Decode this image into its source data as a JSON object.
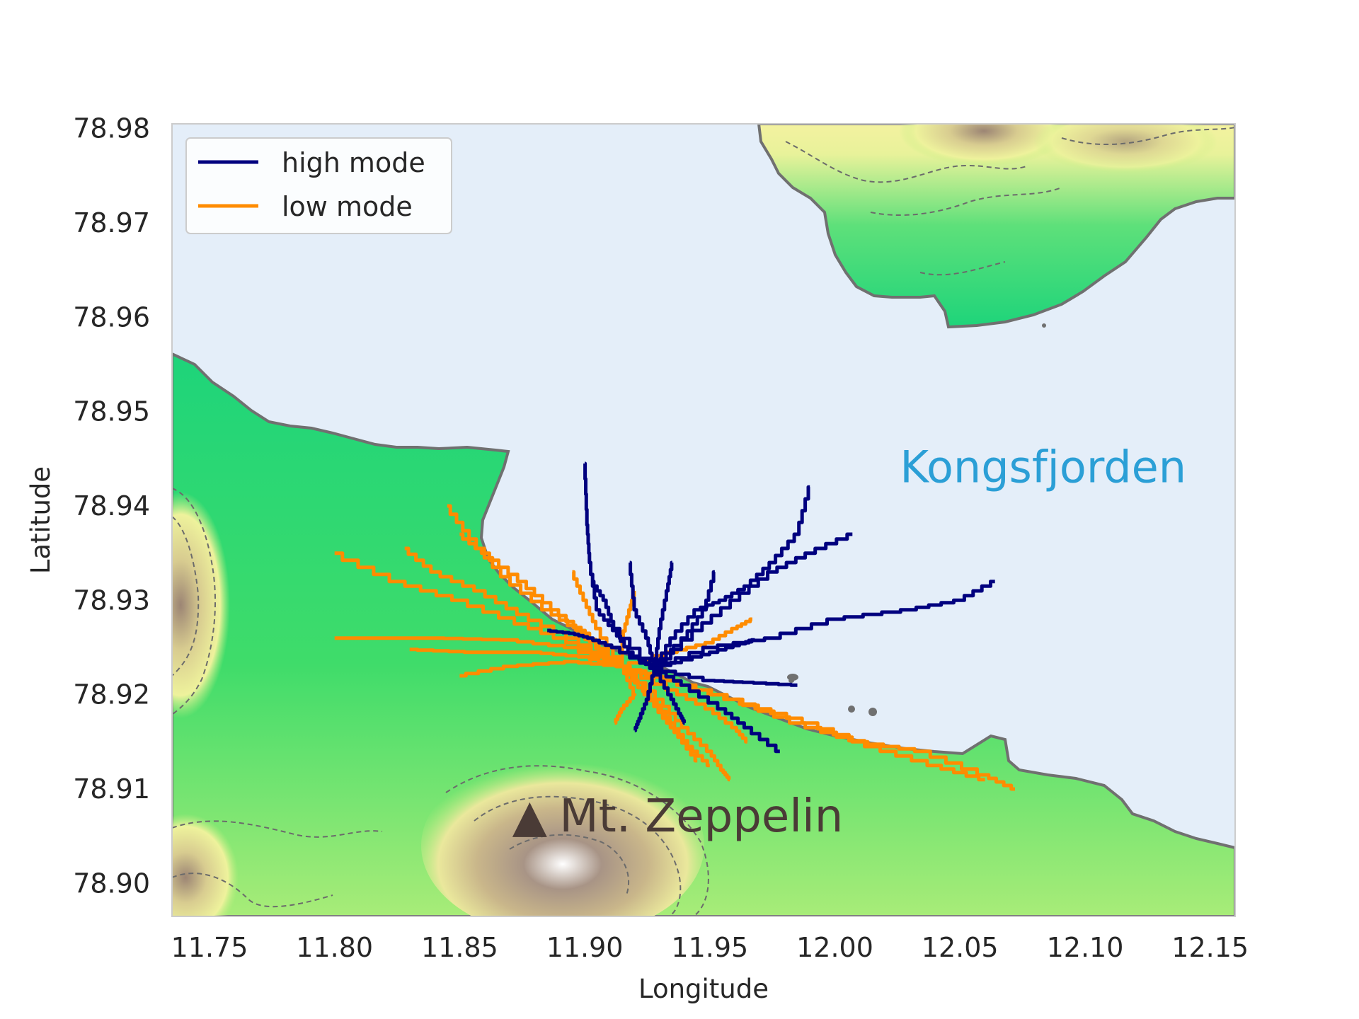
{
  "chart_data": {
    "type": "map-trajectories",
    "xlabel": "Longitude",
    "ylabel": "Latitude",
    "xlim": [
      11.735,
      12.16
    ],
    "ylim": [
      78.8965,
      78.9805
    ],
    "xticks": [
      "11.75",
      "11.80",
      "11.85",
      "11.90",
      "11.95",
      "12.00",
      "12.05",
      "12.10",
      "12.15"
    ],
    "yticks": [
      "78.90",
      "78.91",
      "78.92",
      "78.93",
      "78.94",
      "78.95",
      "78.96",
      "78.97",
      "78.98"
    ],
    "grid": false,
    "legend_position": "top-left",
    "colors": {
      "high_mode": "#00007f",
      "low_mode": "#ff8c00",
      "sea": "#e4eef9",
      "coast": "#707070",
      "land_low": "#1ed47a",
      "land_mid": "#f0f09a",
      "land_high": "#8c7766",
      "peak": "#ffffff"
    },
    "series": [
      {
        "name": "high mode",
        "color": "#00007f",
        "trajectories": [
          [
            [
              11.928,
              78.9228
            ],
            [
              11.918,
              78.9245
            ],
            [
              11.912,
              78.9268
            ],
            [
              11.905,
              78.929
            ],
            [
              11.902,
              78.934
            ],
            [
              11.901,
              78.938
            ],
            [
              11.9,
              78.9445
            ]
          ],
          [
            [
              11.928,
              78.9228
            ],
            [
              11.935,
              78.926
            ],
            [
              11.945,
              78.929
            ],
            [
              11.955,
              78.93
            ],
            [
              11.965,
              78.9315
            ],
            [
              11.975,
              78.934
            ],
            [
              11.985,
              78.937
            ],
            [
              11.99,
              78.942
            ]
          ],
          [
            [
              11.928,
              78.9228
            ],
            [
              11.945,
              78.9268
            ],
            [
              11.96,
              78.93
            ],
            [
              11.975,
              78.933
            ],
            [
              11.99,
              78.935
            ],
            [
              12.007,
              78.937
            ]
          ],
          [
            [
              11.928,
              78.9228
            ],
            [
              11.95,
              78.925
            ],
            [
              11.975,
              78.926
            ],
            [
              12.0,
              78.928
            ],
            [
              12.03,
              78.929
            ],
            [
              12.05,
              78.93
            ],
            [
              12.064,
              78.932
            ]
          ],
          [
            [
              11.928,
              78.9228
            ],
            [
              11.95,
              78.9215
            ],
            [
              11.965,
              78.9213
            ],
            [
              11.985,
              78.921
            ]
          ],
          [
            [
              11.928,
              78.9228
            ],
            [
              11.94,
              78.921
            ],
            [
              11.955,
              78.9185
            ],
            [
              11.965,
              78.9165
            ],
            [
              11.978,
              78.914
            ]
          ],
          [
            [
              11.928,
              78.9228
            ],
            [
              11.925,
              78.926
            ],
            [
              11.92,
              78.929
            ],
            [
              11.918,
              78.934
            ]
          ],
          [
            [
              11.928,
              78.9228
            ],
            [
              11.93,
              78.927
            ],
            [
              11.933,
              78.931
            ],
            [
              11.935,
              78.934
            ]
          ],
          [
            [
              11.928,
              78.9228
            ],
            [
              11.94,
              78.926
            ],
            [
              11.948,
              78.929
            ],
            [
              11.952,
              78.933
            ]
          ],
          [
            [
              11.928,
              78.9228
            ],
            [
              11.912,
              78.925
            ],
            [
              11.902,
              78.926
            ],
            [
              11.895,
              78.9265
            ],
            [
              11.885,
              78.9268
            ]
          ],
          [
            [
              11.928,
              78.9228
            ],
            [
              11.912,
              78.927
            ],
            [
              11.908,
              78.93
            ],
            [
              11.903,
              78.932
            ]
          ],
          [
            [
              11.928,
              78.9228
            ],
            [
              11.925,
              78.9195
            ],
            [
              11.922,
              78.9175
            ],
            [
              11.92,
              78.9162
            ]
          ],
          [
            [
              11.928,
              78.9228
            ],
            [
              11.934,
              78.92
            ],
            [
              11.938,
              78.918
            ],
            [
              11.94,
              78.917
            ]
          ],
          [
            [
              11.928,
              78.9228
            ],
            [
              11.945,
              78.924
            ],
            [
              11.958,
              78.925
            ],
            [
              11.968,
              78.9258
            ]
          ]
        ]
      },
      {
        "name": "low mode",
        "color": "#ff8c00",
        "trajectories": [
          [
            [
              11.915,
              78.923
            ],
            [
              11.895,
              78.925
            ],
            [
              11.87,
              78.9258
            ],
            [
              11.84,
              78.926
            ],
            [
              11.8,
              78.926
            ]
          ],
          [
            [
              11.915,
              78.923
            ],
            [
              11.895,
              78.9255
            ],
            [
              11.875,
              78.9275
            ],
            [
              11.85,
              78.93
            ],
            [
              11.825,
              78.932
            ],
            [
              11.8,
              78.935
            ]
          ],
          [
            [
              11.915,
              78.923
            ],
            [
              11.895,
              78.926
            ],
            [
              11.875,
              78.9285
            ],
            [
              11.858,
              78.931
            ],
            [
              11.84,
              78.933
            ],
            [
              11.828,
              78.9355
            ]
          ],
          [
            [
              11.915,
              78.923
            ],
            [
              11.898,
              78.9268
            ],
            [
              11.885,
              78.929
            ],
            [
              11.868,
              78.9325
            ],
            [
              11.855,
              78.9365
            ],
            [
              11.845,
              78.94
            ]
          ],
          [
            [
              11.915,
              78.923
            ],
            [
              11.9,
              78.924
            ],
            [
              11.88,
              78.9245
            ],
            [
              11.855,
              78.9245
            ],
            [
              11.83,
              78.9248
            ]
          ],
          [
            [
              11.915,
              78.923
            ],
            [
              11.895,
              78.9235
            ],
            [
              11.87,
              78.923
            ],
            [
              11.85,
              78.922
            ]
          ],
          [
            [
              11.915,
              78.923
            ],
            [
              11.9,
              78.9265
            ],
            [
              11.888,
              78.929
            ],
            [
              11.875,
              78.932
            ],
            [
              11.86,
              78.935
            ],
            [
              11.85,
              78.937
            ]
          ],
          [
            [
              11.915,
              78.923
            ],
            [
              11.905,
              78.927
            ],
            [
              11.9,
              78.93
            ],
            [
              11.895,
              78.933
            ]
          ],
          [
            [
              11.915,
              78.923
            ],
            [
              11.935,
              78.9215
            ],
            [
              11.96,
              78.9195
            ],
            [
              11.985,
              78.917
            ],
            [
              12.01,
              78.915
            ],
            [
              12.035,
              78.914
            ],
            [
              12.06,
              78.9115
            ],
            [
              12.072,
              78.91
            ]
          ],
          [
            [
              11.915,
              78.923
            ],
            [
              11.94,
              78.921
            ],
            [
              11.965,
              78.919
            ],
            [
              11.99,
              78.917
            ],
            [
              12.015,
              78.9145
            ],
            [
              12.04,
              78.9125
            ],
            [
              12.06,
              78.911
            ]
          ],
          [
            [
              11.915,
              78.923
            ],
            [
              11.93,
              78.9195
            ],
            [
              11.94,
              78.9165
            ],
            [
              11.95,
              78.914
            ],
            [
              11.955,
              78.912
            ],
            [
              11.958,
              78.911
            ]
          ],
          [
            [
              11.915,
              78.923
            ],
            [
              11.928,
              78.9195
            ],
            [
              11.935,
              78.917
            ],
            [
              11.942,
              78.9145
            ],
            [
              11.95,
              78.9125
            ]
          ],
          [
            [
              11.915,
              78.923
            ],
            [
              11.925,
              78.92
            ],
            [
              11.932,
              78.9175
            ],
            [
              11.938,
              78.9155
            ],
            [
              11.945,
              78.913
            ]
          ],
          [
            [
              11.915,
              78.923
            ],
            [
              11.935,
              78.9205
            ],
            [
              11.95,
              78.9185
            ],
            [
              11.96,
              78.9165
            ],
            [
              11.965,
              78.915
            ]
          ],
          [
            [
              11.915,
              78.923
            ],
            [
              11.92,
              78.92
            ],
            [
              11.915,
              78.9185
            ],
            [
              11.912,
              78.917
            ]
          ],
          [
            [
              11.915,
              78.923
            ],
            [
              11.935,
              78.9245
            ],
            [
              11.95,
              78.9255
            ],
            [
              11.96,
              78.927
            ],
            [
              11.967,
              78.928
            ]
          ],
          [
            [
              11.915,
              78.923
            ],
            [
              11.915,
              78.926
            ],
            [
              11.918,
              78.929
            ],
            [
              11.92,
              78.931
            ]
          ]
        ]
      }
    ],
    "annotations": [
      {
        "text": "Kongsfjorden",
        "lon": 12.026,
        "lat": 78.9425
      },
      {
        "text": "Mt. Zeppelin",
        "marker": "▲",
        "lon": 11.878,
        "lat": 78.9055
      }
    ]
  }
}
